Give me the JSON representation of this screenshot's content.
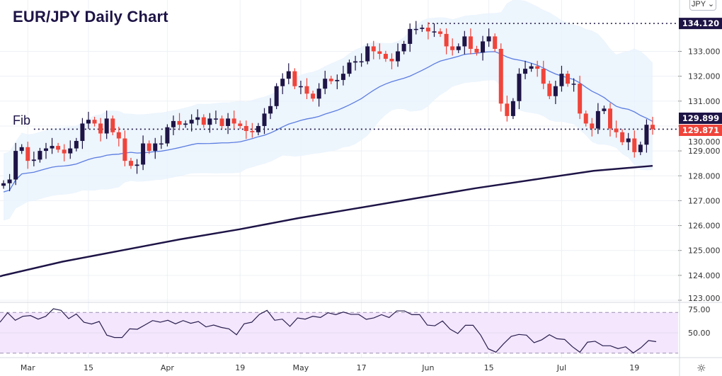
{
  "chart_data": {
    "type": "candlestick",
    "title": "EUR/JPY Daily Chart",
    "currency_selector": "JPY",
    "annotation_fib": "Fib",
    "price_axis": {
      "ticks": [
        "133.000",
        "132.000",
        "131.000",
        "130.000",
        "129.000",
        "128.000",
        "127.000",
        "126.000",
        "125.000",
        "124.000",
        "123.000"
      ],
      "tick_values": [
        133,
        132,
        131,
        130,
        129,
        128,
        127,
        126,
        125,
        124,
        123
      ],
      "ylim": [
        122.9,
        135.2
      ]
    },
    "price_labels": [
      {
        "text": "134.120",
        "value": 134.12,
        "color": "#1e1446"
      },
      {
        "text": "129.899",
        "value": 129.899,
        "color": "#1e1446"
      },
      {
        "text": "129.871",
        "value": 129.871,
        "color": "#f0443a"
      }
    ],
    "horizontal_lines": [
      {
        "name": "high",
        "value": 134.12,
        "from_index": 70
      },
      {
        "name": "fib",
        "value": 129.871,
        "from_index": 5
      }
    ],
    "x_axis": {
      "labels": [
        {
          "text": "Mar",
          "index": 4
        },
        {
          "text": "15",
          "index": 14
        },
        {
          "text": "Apr",
          "index": 27
        },
        {
          "text": "19",
          "index": 39
        },
        {
          "text": "May",
          "index": 49
        },
        {
          "text": "17",
          "index": 59
        },
        {
          "text": "Jun",
          "index": 70
        },
        {
          "text": "15",
          "index": 80
        },
        {
          "text": "Jul",
          "index": 92
        },
        {
          "text": "19",
          "index": 104
        }
      ]
    },
    "first_open": 127.6,
    "closes": [
      127.7,
      127.85,
      129.0,
      129.15,
      128.6,
      128.65,
      129.0,
      129.1,
      129.2,
      129.05,
      128.9,
      129.1,
      129.4,
      130.1,
      130.25,
      130.1,
      129.7,
      130.3,
      129.75,
      129.5,
      128.6,
      128.4,
      128.45,
      129.3,
      129.0,
      129.3,
      129.3,
      129.95,
      130.2,
      130.05,
      130.1,
      130.25,
      130.35,
      130.05,
      130.3,
      130.3,
      130.0,
      130.3,
      130.1,
      130.0,
      129.8,
      129.75,
      130.0,
      130.5,
      130.8,
      131.6,
      131.9,
      132.2,
      131.6,
      131.6,
      131.3,
      131.1,
      131.5,
      131.9,
      131.8,
      131.85,
      132.1,
      132.55,
      132.6,
      132.6,
      133.2,
      133.0,
      132.9,
      132.7,
      132.6,
      133.0,
      133.3,
      133.9,
      133.9,
      133.95,
      133.8,
      133.8,
      133.7,
      133.2,
      133.05,
      133.2,
      133.6,
      133.1,
      132.95,
      133.4,
      133.6,
      133.1,
      130.9,
      130.4,
      131.0,
      132.1,
      132.3,
      132.4,
      132.3,
      131.7,
      131.2,
      131.6,
      132.1,
      131.7,
      131.7,
      130.5,
      130.1,
      129.9,
      130.6,
      130.7,
      129.9,
      129.75,
      129.35,
      129.5,
      128.95,
      129.25,
      130.05,
      129.87
    ],
    "ma200": [
      124.0,
      124.55,
      125.0,
      125.45,
      125.85,
      126.3,
      126.7,
      127.1,
      127.5,
      127.85,
      128.2,
      128.4
    ],
    "series_colors": {
      "bull": "#1e1446",
      "bear": "#f0443a",
      "ma20": "#5b7de0",
      "band": "#e9f3fd",
      "ma200": "#1e1446"
    },
    "rsi": {
      "ticks": [
        "75.00",
        "50.00"
      ],
      "tick_values": [
        75,
        50
      ],
      "levels": [
        70,
        30
      ],
      "ylim": [
        25,
        80
      ],
      "values": [
        60.4,
        69.7,
        62.3,
        66.2,
        66.9,
        63.4,
        66.2,
        73.6,
        72,
        63.9,
        68.5,
        60.4,
        58.6,
        61.1,
        47.7,
        45.4,
        45.4,
        53.9,
        53.5,
        57.7,
        62,
        60.4,
        62.3,
        58.8,
        62,
        59.3,
        61.1,
        55.8,
        57.6,
        55.3,
        53.9,
        48.1,
        58.8,
        60.4,
        68.1,
        72,
        62.3,
        63.4,
        56.3,
        64.6,
        63.4,
        66.2,
        65,
        69.7,
        67.8,
        70.4,
        68.1,
        68.1,
        63.2,
        64.6,
        67.8,
        65,
        71.5,
        71.5,
        67.8,
        67.8,
        57.6,
        56.9,
        61.6,
        53.5,
        49.3,
        57.4,
        57.4,
        47.7,
        34.3,
        31,
        39.2,
        46.5,
        48.4,
        47.7,
        40.3,
        43.1,
        48.1,
        44.2,
        43.5,
        36.5,
        31,
        40.8,
        41.7,
        37.3,
        37.3,
        34.5,
        36.3,
        30.3,
        35.4,
        42.4,
        41.3
      ]
    }
  }
}
